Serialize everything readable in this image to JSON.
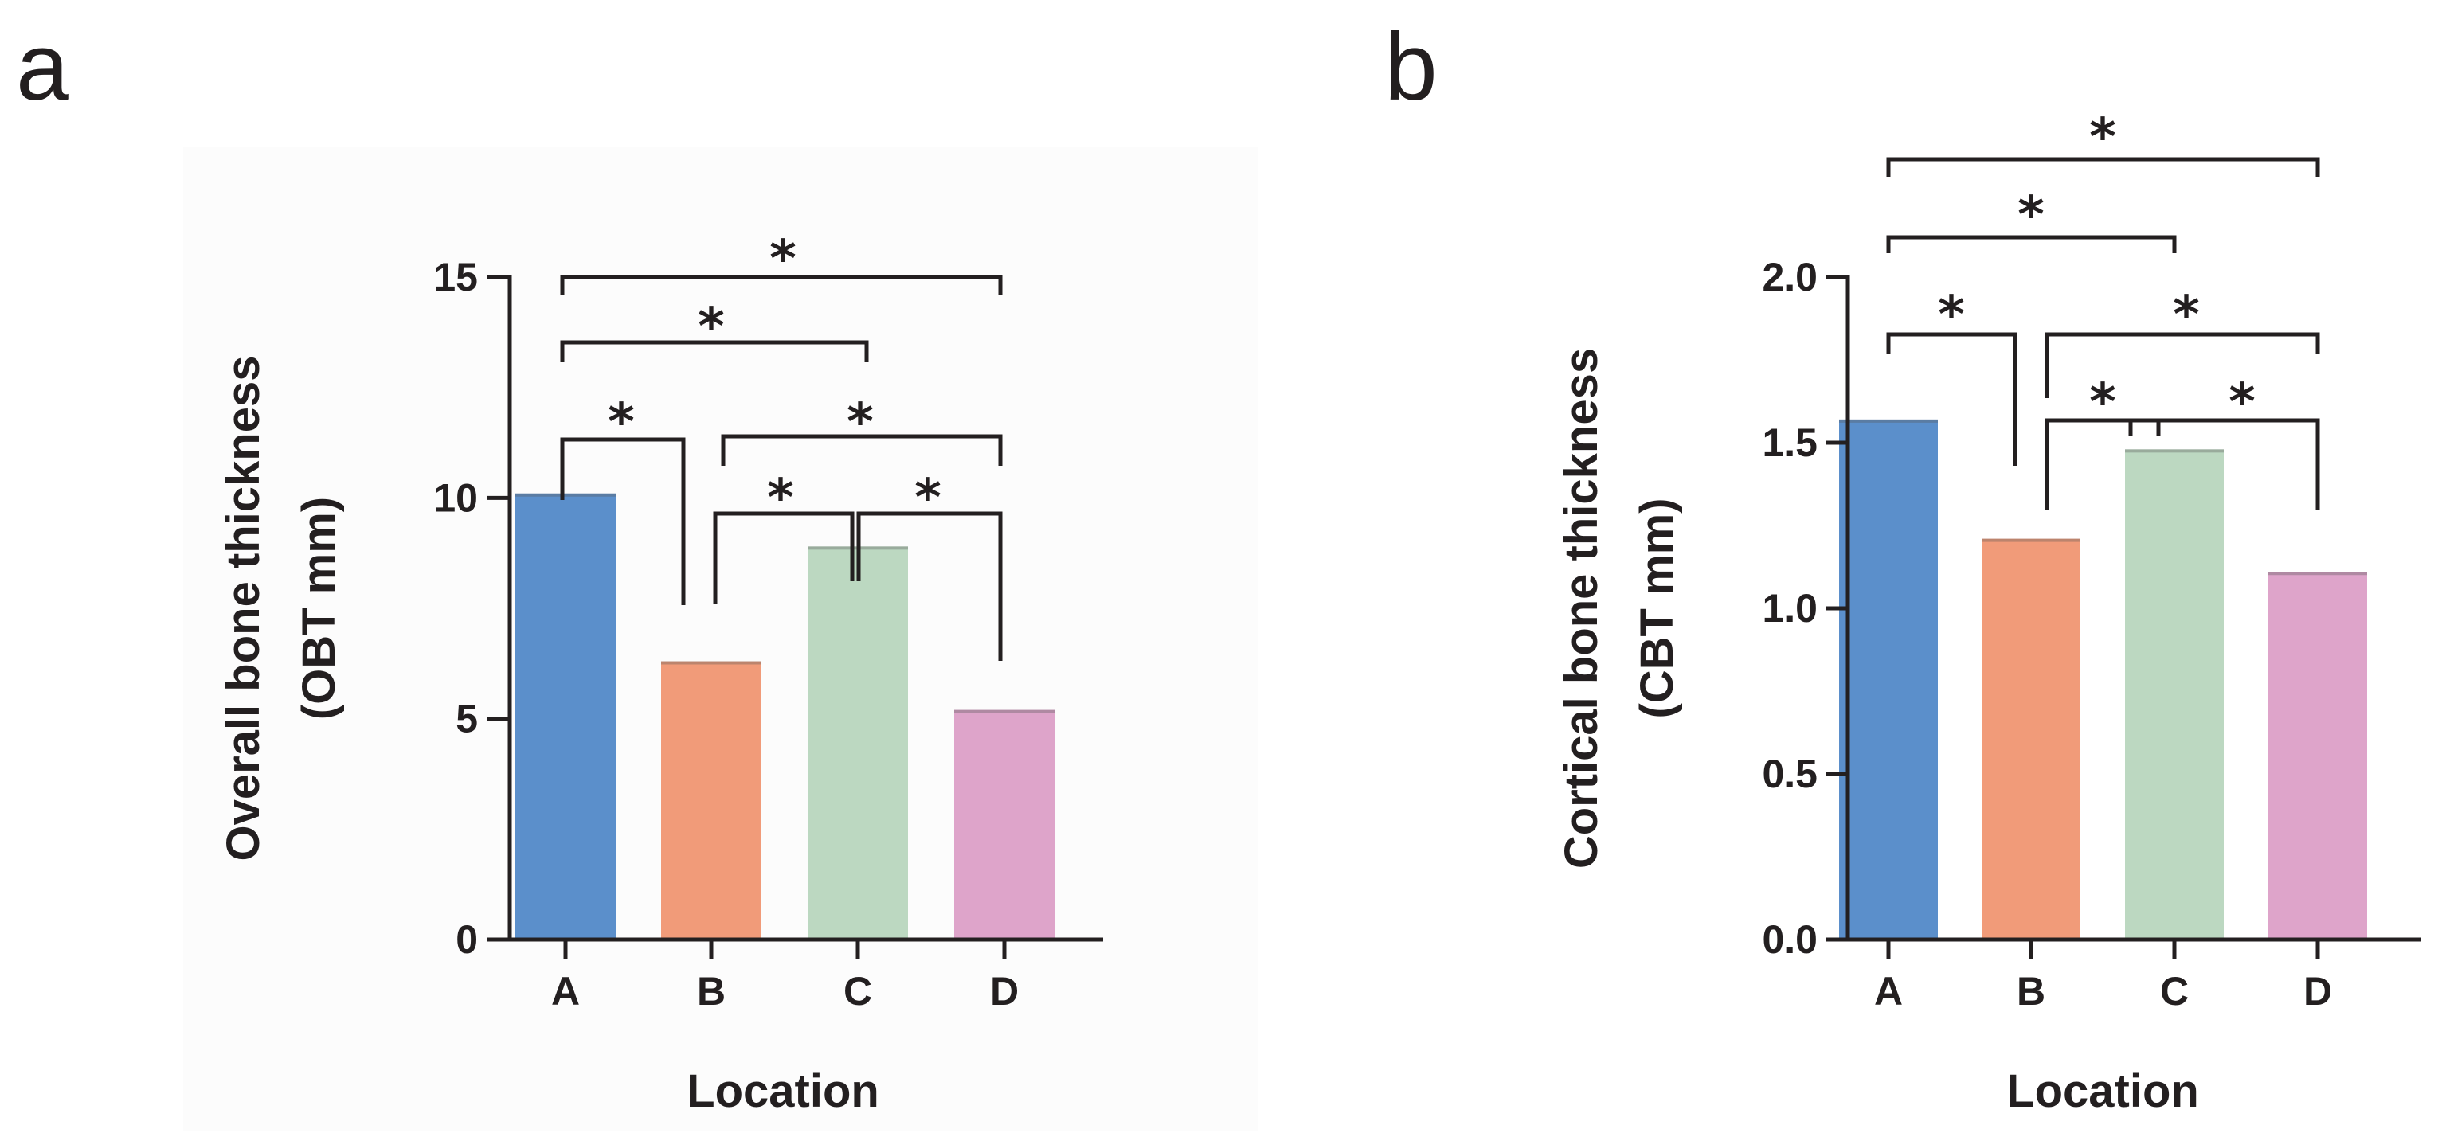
{
  "chart_data": [
    {
      "type": "bar",
      "panel_label": "a",
      "categories": [
        "A",
        "B",
        "C",
        "D"
      ],
      "values": [
        10.1,
        6.3,
        8.9,
        5.2
      ],
      "colors": [
        "#5b8fcb",
        "#f19b79",
        "#bcd8c1",
        "#dea4ca"
      ],
      "xlabel": "Location",
      "ylabel_lines": [
        "Overall bone thickness",
        "(OBT mm)"
      ],
      "ylim": [
        0,
        15
      ],
      "yticks": [
        0,
        5,
        10,
        15
      ],
      "ytick_labels": [
        "0",
        "5",
        "10",
        "15"
      ],
      "significance": [
        {
          "from": "A",
          "to": "B",
          "label": "*"
        },
        {
          "from": "B",
          "to": "C",
          "label": "*"
        },
        {
          "from": "C",
          "to": "D",
          "label": "*"
        },
        {
          "from": "B",
          "to": "D",
          "label": "*"
        },
        {
          "from": "A",
          "to": "C",
          "label": "*"
        },
        {
          "from": "A",
          "to": "D",
          "label": "*"
        }
      ]
    },
    {
      "type": "bar",
      "panel_label": "b",
      "categories": [
        "A",
        "B",
        "C",
        "D"
      ],
      "values": [
        1.57,
        1.21,
        1.48,
        1.11
      ],
      "colors": [
        "#5b8fcb",
        "#f19b79",
        "#bcd8c1",
        "#dea4ca"
      ],
      "xlabel": "Location",
      "ylabel_lines": [
        "Cortical bone  thickness",
        "(CBT mm)"
      ],
      "ylim": [
        0,
        2
      ],
      "yticks": [
        0,
        0.5,
        1,
        1.5,
        2
      ],
      "ytick_labels": [
        "0.0",
        "0.5",
        "1.0",
        "1.5",
        "2.0"
      ],
      "significance": [
        {
          "from": "A",
          "to": "B",
          "label": "*"
        },
        {
          "from": "B",
          "to": "C",
          "label": "*"
        },
        {
          "from": "C",
          "to": "D",
          "label": "*"
        },
        {
          "from": "B",
          "to": "D",
          "label": "*"
        },
        {
          "from": "A",
          "to": "C",
          "label": "*"
        },
        {
          "from": "A",
          "to": "D",
          "label": "*"
        }
      ]
    }
  ]
}
